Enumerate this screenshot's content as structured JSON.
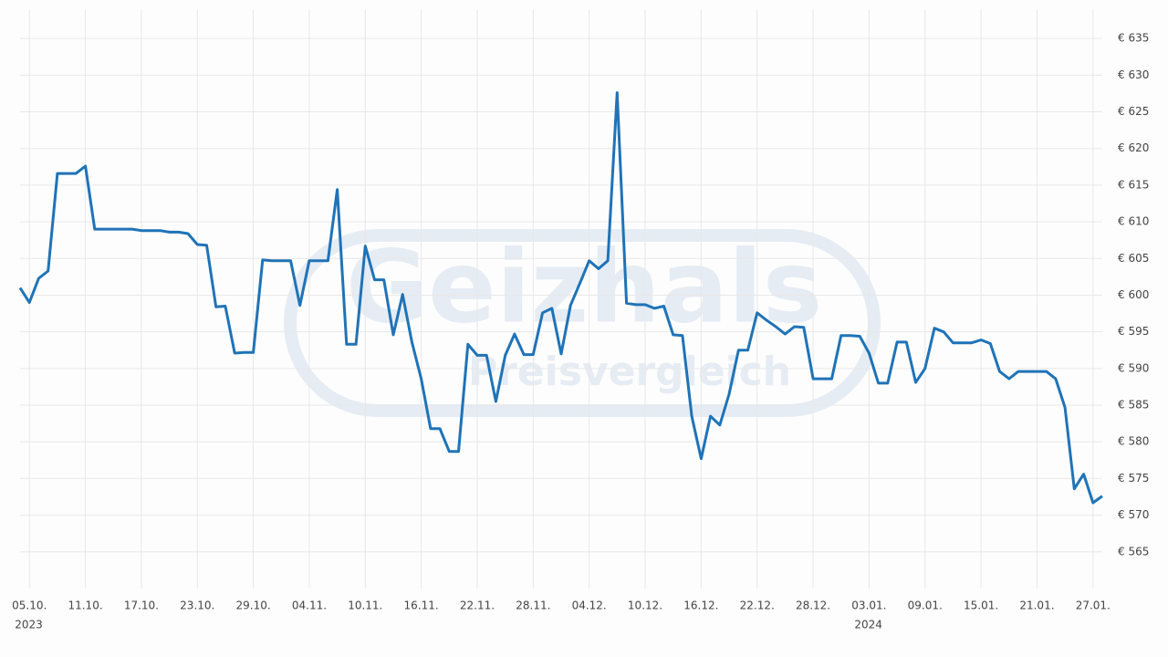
{
  "chart_data": {
    "type": "line",
    "watermark": [
      "Geizhals",
      "Preisvergleich"
    ],
    "x": [
      "2023-10-04",
      "2023-10-05",
      "2023-10-06",
      "2023-10-07",
      "2023-10-08",
      "2023-10-09",
      "2023-10-10",
      "2023-10-11",
      "2023-10-12",
      "2023-10-13",
      "2023-10-14",
      "2023-10-15",
      "2023-10-16",
      "2023-10-17",
      "2023-10-18",
      "2023-10-19",
      "2023-10-20",
      "2023-10-21",
      "2023-10-22",
      "2023-10-23",
      "2023-10-24",
      "2023-10-25",
      "2023-10-26",
      "2023-10-27",
      "2023-10-28",
      "2023-10-29",
      "2023-10-30",
      "2023-10-31",
      "2023-11-01",
      "2023-11-02",
      "2023-11-03",
      "2023-11-04",
      "2023-11-05",
      "2023-11-06",
      "2023-11-07",
      "2023-11-08",
      "2023-11-09",
      "2023-11-10",
      "2023-11-11",
      "2023-11-12",
      "2023-11-13",
      "2023-11-14",
      "2023-11-15",
      "2023-11-16",
      "2023-11-17",
      "2023-11-18",
      "2023-11-19",
      "2023-11-20",
      "2023-11-21",
      "2023-11-22",
      "2023-11-23",
      "2023-11-24",
      "2023-11-25",
      "2023-11-26",
      "2023-11-27",
      "2023-11-28",
      "2023-11-29",
      "2023-11-30",
      "2023-12-01",
      "2023-12-02",
      "2023-12-03",
      "2023-12-04",
      "2023-12-05",
      "2023-12-06",
      "2023-12-07",
      "2023-12-08",
      "2023-12-09",
      "2023-12-10",
      "2023-12-11",
      "2023-12-12",
      "2023-12-13",
      "2023-12-14",
      "2023-12-15",
      "2023-12-16",
      "2023-12-17",
      "2023-12-18",
      "2023-12-19",
      "2023-12-20",
      "2023-12-21",
      "2023-12-22",
      "2023-12-23",
      "2023-12-24",
      "2023-12-25",
      "2023-12-26",
      "2023-12-27",
      "2023-12-28",
      "2023-12-29",
      "2023-12-30",
      "2023-12-31",
      "2024-01-01",
      "2024-01-02",
      "2024-01-03",
      "2024-01-04",
      "2024-01-05",
      "2024-01-06",
      "2024-01-07",
      "2024-01-08",
      "2024-01-09",
      "2024-01-10",
      "2024-01-11",
      "2024-01-12",
      "2024-01-13",
      "2024-01-14",
      "2024-01-15",
      "2024-01-16",
      "2024-01-17",
      "2024-01-18",
      "2024-01-19",
      "2024-01-20",
      "2024-01-21",
      "2024-01-22",
      "2024-01-23",
      "2024-01-24",
      "2024-01-25",
      "2024-01-26",
      "2024-01-27",
      "2024-01-28"
    ],
    "series": [
      {
        "color": "#1f73b7",
        "values": [
          601,
          599,
          602.3,
          603.3,
          616.6,
          616.6,
          616.6,
          617.6,
          609,
          609,
          609,
          609,
          609,
          608.8,
          608.8,
          608.8,
          608.6,
          608.6,
          608.4,
          606.9,
          606.8,
          598.4,
          598.5,
          592.1,
          592.2,
          592.2,
          604.8,
          604.7,
          604.7,
          604.7,
          598.6,
          604.7,
          604.7,
          604.7,
          614.4,
          593.3,
          593.3,
          606.7,
          602.1,
          602.1,
          594.6,
          600.1,
          593.6,
          588.6,
          581.8,
          581.8,
          578.7,
          578.7,
          593.3,
          591.8,
          591.8,
          585.5,
          591.8,
          594.7,
          591.9,
          591.9,
          597.6,
          598.2,
          592,
          598.6,
          601.6,
          604.7,
          603.6,
          604.7,
          627.6,
          598.9,
          598.7,
          598.7,
          598.2,
          598.5,
          594.6,
          594.5,
          583.5,
          577.7,
          583.5,
          582.3,
          586.5,
          592.5,
          592.5,
          597.6,
          596.6,
          595.7,
          594.7,
          595.7,
          595.6,
          588.6,
          588.6,
          588.6,
          594.5,
          594.5,
          594.4,
          592.1,
          588,
          588,
          593.6,
          593.6,
          588.1,
          590,
          595.5,
          595,
          593.5,
          593.5,
          593.5,
          593.9,
          593.4,
          589.6,
          588.6,
          589.6,
          589.6,
          589.6,
          589.6,
          588.6,
          584.7,
          573.6,
          575.6,
          571.7,
          572.6
        ]
      }
    ],
    "xlim": [
      "2023-10-04",
      "2024-01-28"
    ],
    "xticks": [
      {
        "value": "2023-10-05",
        "label": "05.10."
      },
      {
        "value": "2023-10-11",
        "label": "11.10."
      },
      {
        "value": "2023-10-17",
        "label": "17.10."
      },
      {
        "value": "2023-10-23",
        "label": "23.10."
      },
      {
        "value": "2023-10-29",
        "label": "29.10."
      },
      {
        "value": "2023-11-04",
        "label": "04.11."
      },
      {
        "value": "2023-11-10",
        "label": "10.11."
      },
      {
        "value": "2023-11-16",
        "label": "16.11."
      },
      {
        "value": "2023-11-22",
        "label": "22.11."
      },
      {
        "value": "2023-11-28",
        "label": "28.11."
      },
      {
        "value": "2023-12-04",
        "label": "04.12."
      },
      {
        "value": "2023-12-10",
        "label": "10.12."
      },
      {
        "value": "2023-12-16",
        "label": "16.12."
      },
      {
        "value": "2023-12-22",
        "label": "22.12."
      },
      {
        "value": "2023-12-28",
        "label": "28.12."
      },
      {
        "value": "2024-01-03",
        "label": "03.01."
      },
      {
        "value": "2024-01-09",
        "label": "09.01."
      },
      {
        "value": "2024-01-15",
        "label": "15.01."
      },
      {
        "value": "2024-01-21",
        "label": "21.01."
      },
      {
        "value": "2024-01-27",
        "label": "27.01."
      }
    ],
    "year_labels": [
      {
        "value": "2023-10-05",
        "label": "2023"
      },
      {
        "value": "2024-01-03",
        "label": "2024"
      }
    ],
    "ylim": [
      560,
      639
    ],
    "yticks": [
      {
        "value": 565,
        "label": "€ 565"
      },
      {
        "value": 570,
        "label": "€ 570"
      },
      {
        "value": 575,
        "label": "€ 575"
      },
      {
        "value": 580,
        "label": "€ 580"
      },
      {
        "value": 585,
        "label": "€ 585"
      },
      {
        "value": 590,
        "label": "€ 590"
      },
      {
        "value": 595,
        "label": "€ 595"
      },
      {
        "value": 600,
        "label": "€ 600"
      },
      {
        "value": 605,
        "label": "€ 605"
      },
      {
        "value": 610,
        "label": "€ 610"
      },
      {
        "value": 615,
        "label": "€ 615"
      },
      {
        "value": 620,
        "label": "€ 620"
      },
      {
        "value": 625,
        "label": "€ 625"
      },
      {
        "value": 630,
        "label": "€ 630"
      },
      {
        "value": 635,
        "label": "€ 635"
      }
    ],
    "grid": true
  }
}
